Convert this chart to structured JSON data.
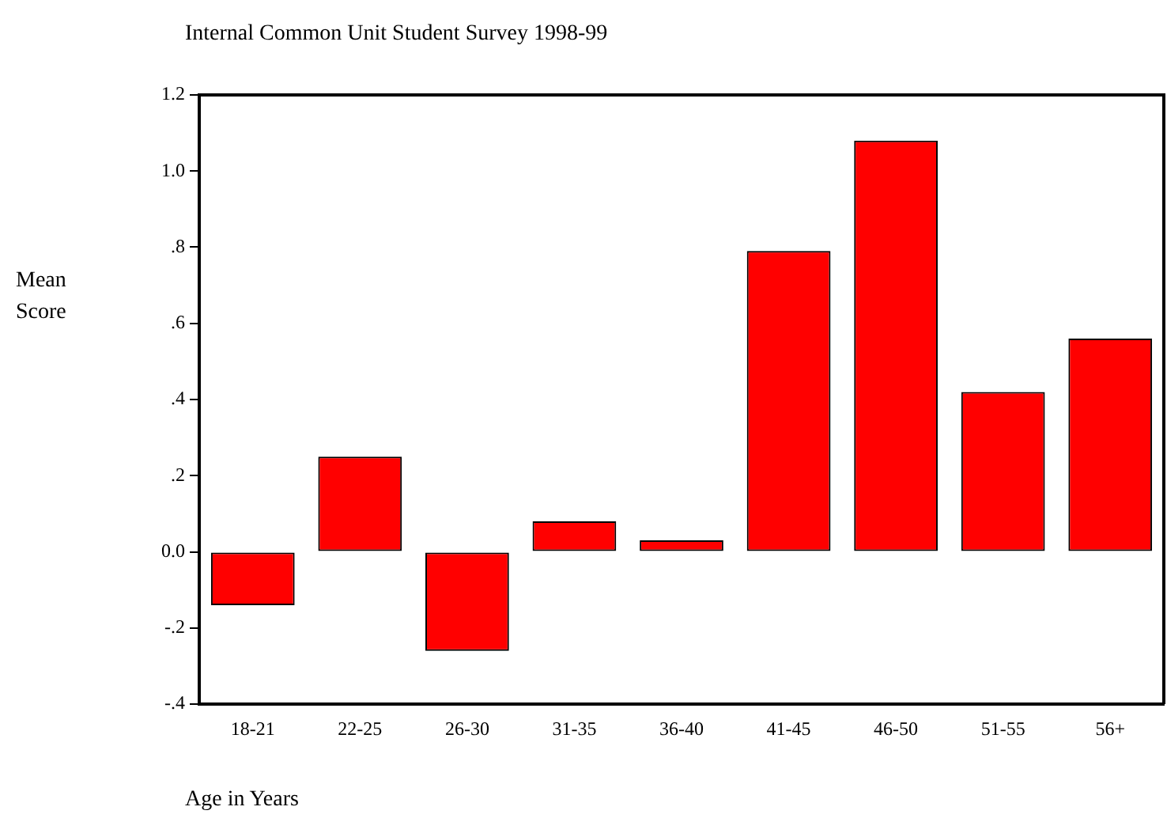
{
  "chart_data": {
    "type": "bar",
    "title": "Internal Common Unit Student Survey 1998-99",
    "xlabel": "Age in Years",
    "ylabel": "Mean Score",
    "categories": [
      "18-21",
      "22-25",
      "26-30",
      "31-35",
      "36-40",
      "41-45",
      "46-50",
      "51-55",
      "56+"
    ],
    "values": [
      -0.14,
      0.25,
      -0.26,
      0.08,
      0.03,
      0.79,
      1.08,
      0.42,
      0.56
    ],
    "color": "#ff0000",
    "ylim": [
      -0.4,
      1.2
    ],
    "yticks": [
      {
        "value": -0.4,
        "label": "-.4"
      },
      {
        "value": -0.2,
        "label": "-.2"
      },
      {
        "value": 0,
        "label": "0.0"
      },
      {
        "value": 0.2,
        "label": ".2"
      },
      {
        "value": 0.4,
        "label": ".4"
      },
      {
        "value": 0.6,
        "label": ".6"
      },
      {
        "value": 0.8,
        "label": ".8"
      },
      {
        "value": 1.0,
        "label": "1.0"
      },
      1.2
    ],
    "grid": false,
    "legend": false
  }
}
